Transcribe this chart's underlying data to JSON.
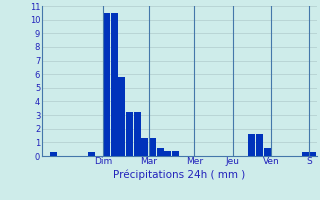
{
  "xlabel": "Précipitations 24h ( mm )",
  "background_color": "#ceecea",
  "bar_color": "#0033bb",
  "grid_color": "#b0cccc",
  "sep_color": "#4477aa",
  "ylim": [
    0,
    11
  ],
  "yticks": [
    0,
    1,
    2,
    3,
    4,
    5,
    6,
    7,
    8,
    9,
    10,
    11
  ],
  "day_labels": [
    "Dim",
    "Mar",
    "Mer",
    "Jeu",
    "Ven",
    "S"
  ],
  "day_tick_positions": [
    7.5,
    13.5,
    19.5,
    24.5,
    29.5,
    34.5
  ],
  "day_sep_positions": [
    7.5,
    13.5,
    19.5,
    24.5,
    29.5,
    34.5
  ],
  "num_bars": 36,
  "bar_values": [
    0,
    0.3,
    0,
    0,
    0,
    0,
    0.3,
    0,
    10.5,
    10.5,
    5.8,
    3.2,
    3.2,
    1.3,
    1.3,
    0.6,
    0.4,
    0.4,
    0,
    0,
    0,
    0,
    0,
    0,
    0,
    0,
    0,
    1.6,
    1.6,
    0.6,
    0,
    0,
    0,
    0,
    0.3,
    0.3
  ]
}
